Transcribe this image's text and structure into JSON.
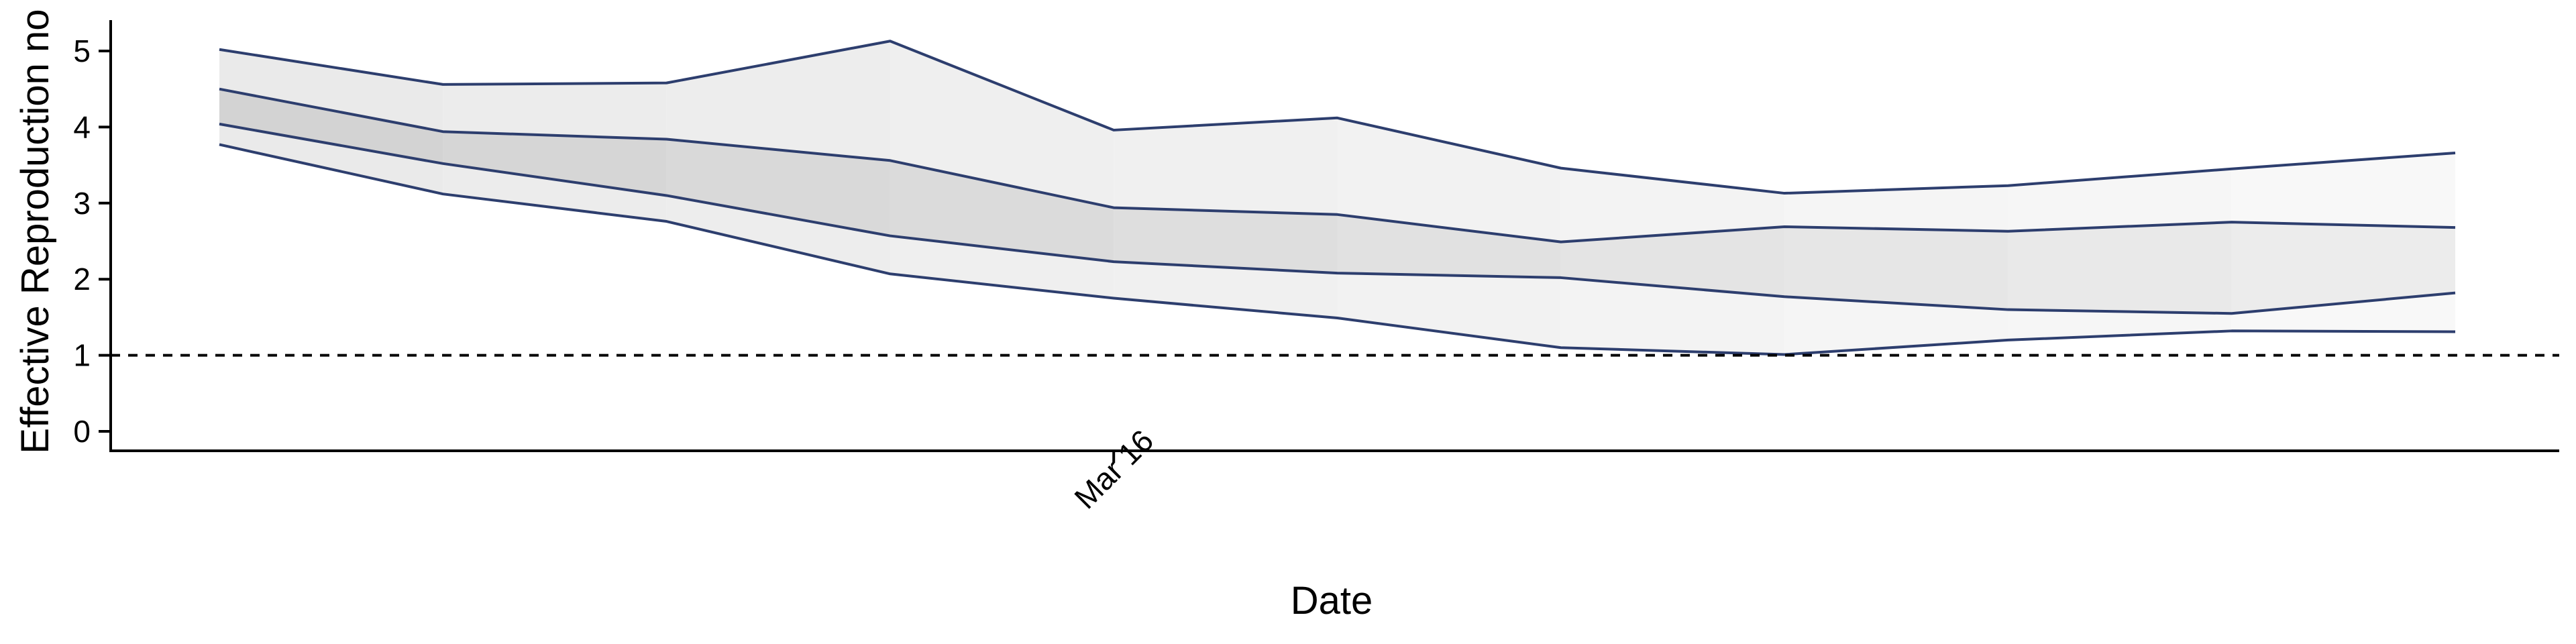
{
  "chart_data": {
    "type": "area",
    "title": "",
    "xlabel": "Date",
    "ylabel": "Effective Reproduction no",
    "x": [
      0,
      1,
      2,
      3,
      4,
      5,
      6,
      7,
      8,
      9,
      10
    ],
    "x_ticks": [
      {
        "x": 4,
        "label": "Mar 16"
      }
    ],
    "ylim": [
      0,
      5.5
    ],
    "y_ticks": [
      0,
      1,
      2,
      3,
      4,
      5
    ],
    "grid": false,
    "legend": "none",
    "reference_line": {
      "y": 1,
      "style": "dashed"
    },
    "bands": [
      {
        "level": "outer",
        "upper": [
          5.02,
          4.56,
          4.58,
          5.13,
          3.96,
          4.12,
          3.46,
          3.13,
          3.23,
          3.45,
          3.66
        ],
        "lower": [
          3.77,
          3.12,
          2.76,
          2.07,
          1.75,
          1.49,
          1.1,
          1.01,
          1.2,
          1.32,
          1.31
        ]
      },
      {
        "level": "inner",
        "upper": [
          4.5,
          3.94,
          3.84,
          3.56,
          2.94,
          2.85,
          2.49,
          2.69,
          2.63,
          2.75,
          2.68
        ],
        "lower": [
          4.04,
          3.52,
          3.1,
          2.57,
          2.23,
          2.08,
          2.02,
          1.77,
          1.6,
          1.55,
          1.82
        ]
      }
    ],
    "colors": {
      "line": "#2d3e6e",
      "inner_band_start": "#d3d3d3",
      "inner_band_end": "#ececec",
      "outer_band_start": "#eaeaea",
      "outer_band_end": "#f8f8f8",
      "axis": "#000000",
      "reference_line": "#000000"
    }
  }
}
